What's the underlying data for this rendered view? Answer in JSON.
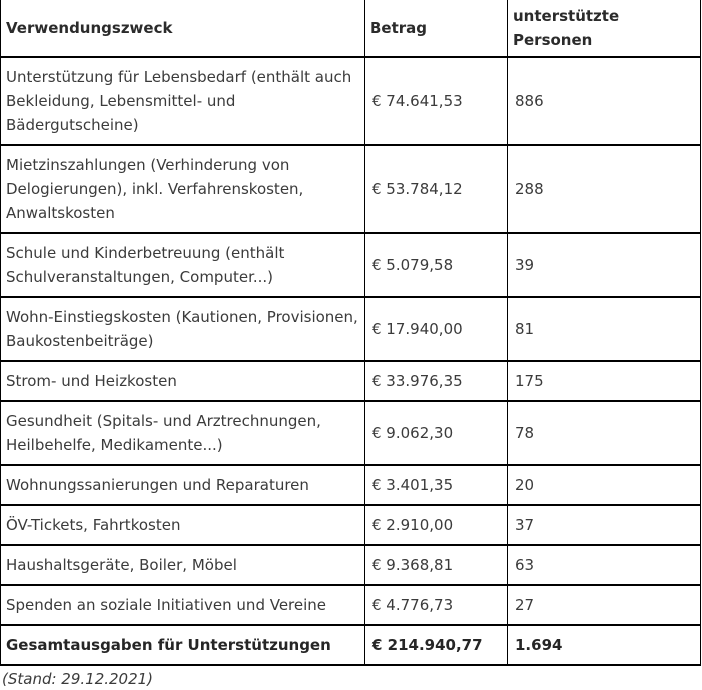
{
  "table": {
    "headers": {
      "zweck": "Verwendungszweck",
      "betrag": "Betrag",
      "personen": "unterstützte Personen"
    },
    "rows": [
      {
        "zweck": "Unterstützung für Lebensbedarf (enthält auch Bekleidung, Lebensmittel- und Bädergutscheine)",
        "betrag": "€ 74.641,53",
        "personen": "886"
      },
      {
        "zweck": "Mietzinszahlungen (Verhinderung von Delogierungen), inkl. Verfahrenskosten, Anwaltskosten",
        "betrag": "€ 53.784,12",
        "personen": "288"
      },
      {
        "zweck": "Schule und Kinderbetreuung (enthält Schulveranstaltungen, Computer...)",
        "betrag": "€ 5.079,58",
        "personen": "39"
      },
      {
        "zweck": "Wohn-Einstiegskosten (Kautionen, Provisionen, Baukostenbeiträge)",
        "betrag": "€ 17.940,00",
        "personen": "81"
      },
      {
        "zweck": "Strom- und Heizkosten",
        "betrag": "€ 33.976,35",
        "personen": "175"
      },
      {
        "zweck": "Gesundheit (Spitals- und Arztrechnungen, Heilbehelfe, Medikamente...)",
        "betrag": "€ 9.062,30",
        "personen": "78"
      },
      {
        "zweck": "Wohnungssanierungen und Reparaturen",
        "betrag": "€ 3.401,35",
        "personen": "20"
      },
      {
        "zweck": "ÖV-Tickets, Fahrtkosten",
        "betrag": "€ 2.910,00",
        "personen": "37"
      },
      {
        "zweck": "Haushaltsgeräte, Boiler, Möbel",
        "betrag": "€ 9.368,81",
        "personen": "63"
      },
      {
        "zweck": "Spenden an soziale Initiativen und Vereine",
        "betrag": "€ 4.776,73",
        "personen": "27"
      }
    ],
    "footer": {
      "zweck": "Gesamtausgaben für Unterstützungen",
      "betrag": "€ 214.940,77",
      "personen": "1.694"
    }
  },
  "caption": "(Stand: 29.12.2021)",
  "colors": {
    "background": "#ffffff",
    "border": "#000000",
    "text": "#3b3b3b",
    "bold_text": "#262626"
  }
}
